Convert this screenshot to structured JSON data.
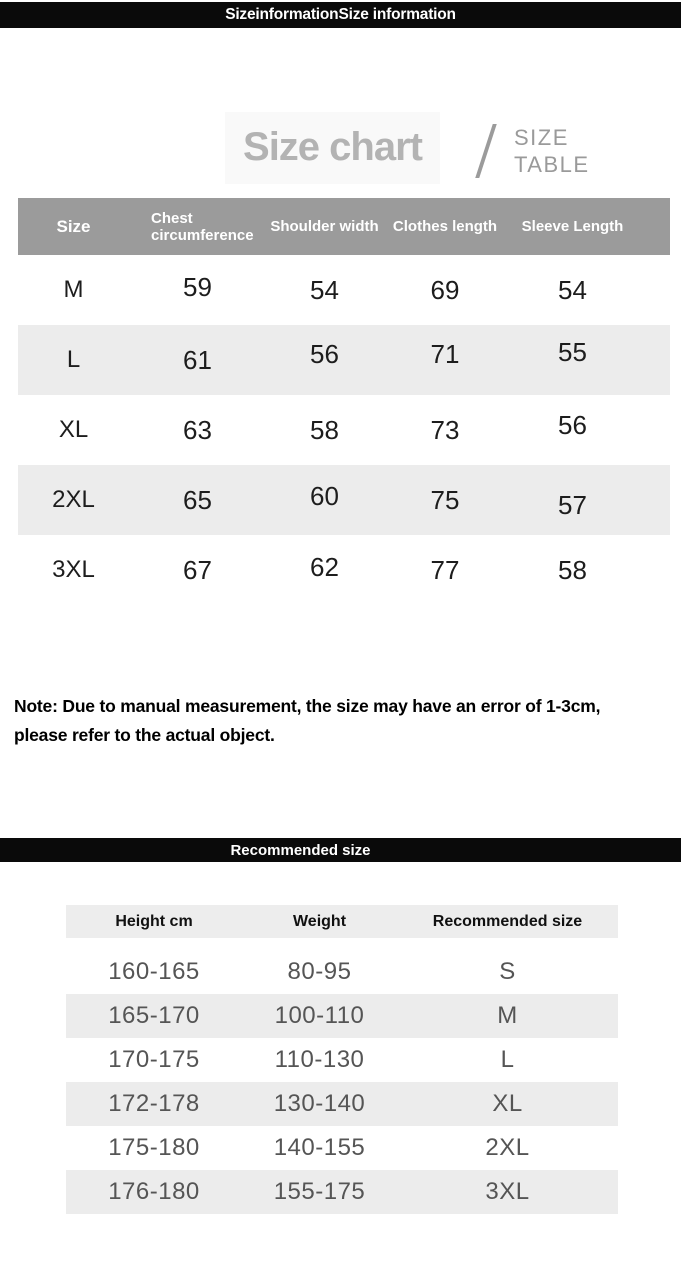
{
  "banners": {
    "top": "SizeinformationSize information",
    "recommended": "Recommended size"
  },
  "size_chart": {
    "title": "Size chart",
    "side_label_line1": "SIZE",
    "side_label_line2": "TABLE",
    "columns": [
      "Size",
      "Chest circumference",
      "Shoulder width",
      "Clothes length",
      "Sleeve Length"
    ],
    "rows": [
      [
        "M",
        "59",
        "54",
        "69",
        "54"
      ],
      [
        "L",
        "61",
        "56",
        "71",
        "55"
      ],
      [
        "XL",
        "63",
        "58",
        "73",
        "56"
      ],
      [
        "2XL",
        "65",
        "60",
        "75",
        "57"
      ],
      [
        "3XL",
        "67",
        "62",
        "77",
        "58"
      ]
    ]
  },
  "note": {
    "line1": "Note: Due to manual measurement, the size may have an error of 1-3cm,",
    "line2": "please refer to the actual object."
  },
  "recommended_chart": {
    "columns": [
      "Height cm",
      "Weight",
      "Recommended size"
    ],
    "rows": [
      [
        "160-165",
        "80-95",
        "S"
      ],
      [
        "165-170",
        "100-110",
        "M"
      ],
      [
        "170-175",
        "110-130",
        "L"
      ],
      [
        "172-178",
        "130-140",
        "XL"
      ],
      [
        "175-180",
        "140-155",
        "2XL"
      ],
      [
        "176-180",
        "155-175",
        "3XL"
      ]
    ]
  },
  "colors": {
    "banner_bg": "#0a0a0a",
    "banner_text": "#ffffff",
    "table_header_bg": "#9b9b9b",
    "alt_row_bg": "#ececec",
    "title_gray": "#b3b3b3",
    "side_label_gray": "#9a9a9a",
    "value_text": "#555555",
    "size_table_text": "#1d1d1d"
  }
}
